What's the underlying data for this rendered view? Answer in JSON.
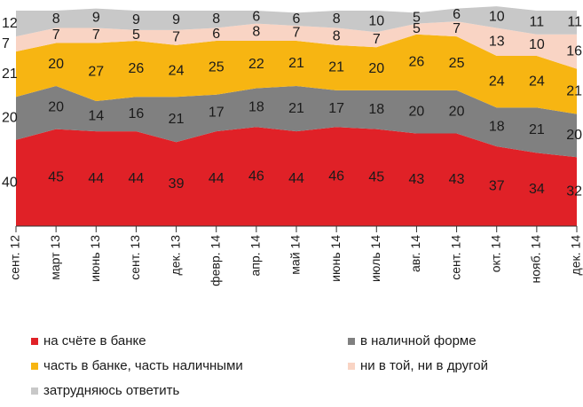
{
  "chart_data": {
    "type": "stacked_area",
    "categories": [
      "сент. 12",
      "март 13",
      "июнь 13",
      "сент. 13",
      "дек. 13",
      "февр. 14",
      "апр. 14",
      "май 14",
      "июнь 14",
      "июль 14",
      "авг. 14",
      "сент. 14",
      "окт. 14",
      "нояб. 14",
      "дек. 14"
    ],
    "series": [
      {
        "name": "на счёте в банке",
        "color": "#e02127",
        "values": [
          40,
          45,
          44,
          44,
          39,
          44,
          46,
          44,
          46,
          45,
          43,
          43,
          37,
          34,
          32
        ]
      },
      {
        "name": "в наличной форме",
        "color": "#808080",
        "values": [
          20,
          20,
          14,
          16,
          21,
          17,
          18,
          21,
          17,
          18,
          20,
          20,
          18,
          21,
          20
        ]
      },
      {
        "name": "часть в банке, часть наличными",
        "color": "#f7b512",
        "values": [
          21,
          20,
          27,
          26,
          24,
          25,
          22,
          21,
          21,
          20,
          26,
          25,
          24,
          24,
          21
        ]
      },
      {
        "name": "ни в той, ни в другой",
        "color": "#f9d4c4",
        "values": [
          7,
          7,
          7,
          5,
          7,
          6,
          8,
          7,
          8,
          7,
          5,
          7,
          13,
          10,
          16
        ]
      },
      {
        "name": "затрудняюсь ответить",
        "color": "#c8c8c8",
        "values": [
          12,
          8,
          9,
          9,
          9,
          8,
          6,
          6,
          8,
          10,
          5,
          6,
          10,
          11,
          11
        ]
      }
    ],
    "ylim": [
      0,
      100
    ]
  }
}
